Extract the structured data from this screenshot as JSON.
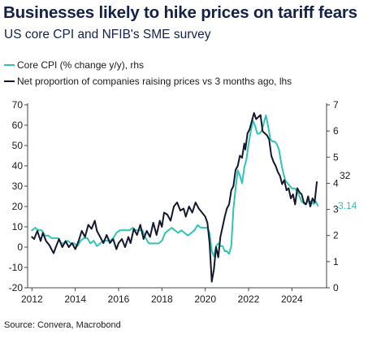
{
  "chart_data": {
    "type": "line",
    "title": "Businesses likely to hike prices on tariff fears",
    "subtitle": "US core CPI and NFIB's SME survey",
    "source": "Source: Convera, Macrobond",
    "xlim": [
      2011.8,
      2025.6
    ],
    "x_ticks": [
      2012,
      2014,
      2016,
      2018,
      2020,
      2022,
      2024
    ],
    "left_axis": {
      "ylim": [
        -20,
        70
      ],
      "ticks": [
        -20,
        -10,
        0,
        10,
        20,
        30,
        40,
        50,
        60,
        70
      ]
    },
    "right_axis": {
      "ylim": [
        0,
        7
      ],
      "ticks": [
        0,
        1,
        2,
        3,
        4,
        5,
        6,
        7
      ]
    },
    "grid": false,
    "legend_position": "top-left",
    "series": [
      {
        "name": "Net proportion of companies raising prices vs 3 months ago, lhs",
        "axis": "left",
        "color": "#14182e",
        "end_label": "32",
        "points": [
          [
            2012.0,
            5
          ],
          [
            2012.1,
            4
          ],
          [
            2012.25,
            8
          ],
          [
            2012.4,
            3
          ],
          [
            2012.5,
            7
          ],
          [
            2012.65,
            3
          ],
          [
            2012.8,
            1
          ],
          [
            2013.0,
            -3
          ],
          [
            2013.1,
            0
          ],
          [
            2013.25,
            4
          ],
          [
            2013.4,
            0
          ],
          [
            2013.55,
            3
          ],
          [
            2013.7,
            0
          ],
          [
            2013.85,
            2
          ],
          [
            2014.0,
            -1
          ],
          [
            2014.15,
            3
          ],
          [
            2014.3,
            8
          ],
          [
            2014.45,
            5
          ],
          [
            2014.6,
            11
          ],
          [
            2014.75,
            9
          ],
          [
            2014.9,
            13
          ],
          [
            2015.0,
            8
          ],
          [
            2015.15,
            5
          ],
          [
            2015.3,
            2
          ],
          [
            2015.45,
            6
          ],
          [
            2015.6,
            2
          ],
          [
            2015.75,
            4
          ],
          [
            2015.9,
            -1
          ],
          [
            2016.0,
            2
          ],
          [
            2016.15,
            4
          ],
          [
            2016.3,
            0
          ],
          [
            2016.45,
            5
          ],
          [
            2016.55,
            2
          ],
          [
            2016.7,
            9
          ],
          [
            2016.85,
            6
          ],
          [
            2017.0,
            11
          ],
          [
            2017.15,
            4
          ],
          [
            2017.3,
            8
          ],
          [
            2017.45,
            5
          ],
          [
            2017.6,
            12
          ],
          [
            2017.75,
            6
          ],
          [
            2017.9,
            13
          ],
          [
            2018.0,
            10
          ],
          [
            2018.1,
            17
          ],
          [
            2018.25,
            16
          ],
          [
            2018.4,
            13
          ],
          [
            2018.55,
            20
          ],
          [
            2018.7,
            22
          ],
          [
            2018.85,
            18
          ],
          [
            2019.0,
            19
          ],
          [
            2019.1,
            15
          ],
          [
            2019.25,
            20
          ],
          [
            2019.4,
            17
          ],
          [
            2019.55,
            22
          ],
          [
            2019.7,
            19
          ],
          [
            2019.85,
            17
          ],
          [
            2020.0,
            15
          ],
          [
            2020.1,
            12
          ],
          [
            2020.2,
            2
          ],
          [
            2020.3,
            -17
          ],
          [
            2020.4,
            -11
          ],
          [
            2020.5,
            0
          ],
          [
            2020.6,
            -5
          ],
          [
            2020.7,
            5
          ],
          [
            2020.8,
            10
          ],
          [
            2020.9,
            15
          ],
          [
            2021.0,
            19
          ],
          [
            2021.1,
            21
          ],
          [
            2021.2,
            28
          ],
          [
            2021.3,
            30
          ],
          [
            2021.4,
            38
          ],
          [
            2021.5,
            40
          ],
          [
            2021.6,
            45
          ],
          [
            2021.7,
            44
          ],
          [
            2021.8,
            51
          ],
          [
            2021.85,
            48
          ],
          [
            2021.95,
            56
          ],
          [
            2022.05,
            58
          ],
          [
            2022.15,
            62
          ],
          [
            2022.25,
            66
          ],
          [
            2022.35,
            63
          ],
          [
            2022.45,
            64
          ],
          [
            2022.55,
            65
          ],
          [
            2022.65,
            57
          ],
          [
            2022.75,
            56
          ],
          [
            2022.85,
            55
          ],
          [
            2022.95,
            53
          ],
          [
            2023.05,
            45
          ],
          [
            2023.15,
            42
          ],
          [
            2023.25,
            40
          ],
          [
            2023.35,
            37
          ],
          [
            2023.45,
            35
          ],
          [
            2023.55,
            31
          ],
          [
            2023.65,
            33
          ],
          [
            2023.75,
            28
          ],
          [
            2023.85,
            29
          ],
          [
            2023.95,
            24
          ],
          [
            2024.05,
            26
          ],
          [
            2024.15,
            21
          ],
          [
            2024.25,
            29
          ],
          [
            2024.35,
            27
          ],
          [
            2024.45,
            26
          ],
          [
            2024.55,
            22
          ],
          [
            2024.65,
            21
          ],
          [
            2024.75,
            25
          ],
          [
            2024.85,
            20
          ],
          [
            2024.95,
            24
          ],
          [
            2025.05,
            22
          ],
          [
            2025.15,
            32
          ]
        ]
      },
      {
        "name": "Core CPI (% change y/y), rhs",
        "axis": "right",
        "color": "#2ec4b6",
        "end_label": "3.14",
        "points": [
          [
            2012.0,
            2.2
          ],
          [
            2012.15,
            2.3
          ],
          [
            2012.3,
            2.2
          ],
          [
            2012.45,
            2.2
          ],
          [
            2012.6,
            2.0
          ],
          [
            2012.75,
            2.0
          ],
          [
            2012.9,
            1.9
          ],
          [
            2013.05,
            1.9
          ],
          [
            2013.2,
            1.9
          ],
          [
            2013.35,
            1.7
          ],
          [
            2013.5,
            1.7
          ],
          [
            2013.65,
            1.8
          ],
          [
            2013.8,
            1.7
          ],
          [
            2013.95,
            1.7
          ],
          [
            2014.1,
            1.6
          ],
          [
            2014.25,
            1.8
          ],
          [
            2014.4,
            1.9
          ],
          [
            2014.55,
            1.9
          ],
          [
            2014.7,
            1.7
          ],
          [
            2014.85,
            1.8
          ],
          [
            2015.0,
            1.6
          ],
          [
            2015.15,
            1.7
          ],
          [
            2015.3,
            1.8
          ],
          [
            2015.45,
            1.8
          ],
          [
            2015.6,
            1.8
          ],
          [
            2015.75,
            1.9
          ],
          [
            2015.9,
            2.1
          ],
          [
            2016.05,
            2.2
          ],
          [
            2016.2,
            2.2
          ],
          [
            2016.35,
            2.2
          ],
          [
            2016.5,
            2.2
          ],
          [
            2016.65,
            2.3
          ],
          [
            2016.8,
            2.2
          ],
          [
            2016.95,
            2.2
          ],
          [
            2017.1,
            2.2
          ],
          [
            2017.25,
            1.9
          ],
          [
            2017.4,
            1.7
          ],
          [
            2017.55,
            1.7
          ],
          [
            2017.7,
            1.7
          ],
          [
            2017.85,
            1.7
          ],
          [
            2018.0,
            1.8
          ],
          [
            2018.15,
            2.1
          ],
          [
            2018.3,
            2.2
          ],
          [
            2018.45,
            2.3
          ],
          [
            2018.6,
            2.2
          ],
          [
            2018.75,
            2.1
          ],
          [
            2018.9,
            2.2
          ],
          [
            2019.05,
            2.1
          ],
          [
            2019.2,
            2.0
          ],
          [
            2019.35,
            2.1
          ],
          [
            2019.5,
            2.2
          ],
          [
            2019.65,
            2.4
          ],
          [
            2019.8,
            2.3
          ],
          [
            2019.95,
            2.3
          ],
          [
            2020.1,
            2.3
          ],
          [
            2020.2,
            2.1
          ],
          [
            2020.3,
            1.4
          ],
          [
            2020.4,
            1.2
          ],
          [
            2020.5,
            1.6
          ],
          [
            2020.6,
            1.7
          ],
          [
            2020.7,
            1.6
          ],
          [
            2020.8,
            1.6
          ],
          [
            2020.9,
            1.4
          ],
          [
            2021.0,
            1.4
          ],
          [
            2021.1,
            1.3
          ],
          [
            2021.2,
            1.6
          ],
          [
            2021.3,
            3.0
          ],
          [
            2021.4,
            3.8
          ],
          [
            2021.5,
            4.5
          ],
          [
            2021.6,
            4.3
          ],
          [
            2021.7,
            4.0
          ],
          [
            2021.8,
            4.6
          ],
          [
            2021.9,
            4.9
          ],
          [
            2022.0,
            5.5
          ],
          [
            2022.1,
            6.0
          ],
          [
            2022.2,
            6.4
          ],
          [
            2022.3,
            6.2
          ],
          [
            2022.4,
            5.9
          ],
          [
            2022.5,
            5.9
          ],
          [
            2022.6,
            6.0
          ],
          [
            2022.7,
            6.3
          ],
          [
            2022.8,
            6.6
          ],
          [
            2022.9,
            6.2
          ],
          [
            2023.0,
            5.7
          ],
          [
            2023.1,
            5.6
          ],
          [
            2023.2,
            5.6
          ],
          [
            2023.3,
            5.5
          ],
          [
            2023.4,
            5.3
          ],
          [
            2023.5,
            4.8
          ],
          [
            2023.6,
            4.4
          ],
          [
            2023.7,
            4.1
          ],
          [
            2023.8,
            4.0
          ],
          [
            2023.9,
            3.9
          ],
          [
            2024.0,
            3.8
          ],
          [
            2024.15,
            3.8
          ],
          [
            2024.3,
            3.6
          ],
          [
            2024.45,
            3.3
          ],
          [
            2024.6,
            3.2
          ],
          [
            2024.75,
            3.3
          ],
          [
            2024.9,
            3.3
          ],
          [
            2025.0,
            3.2
          ],
          [
            2025.1,
            3.3
          ],
          [
            2025.2,
            3.14
          ]
        ]
      }
    ]
  }
}
